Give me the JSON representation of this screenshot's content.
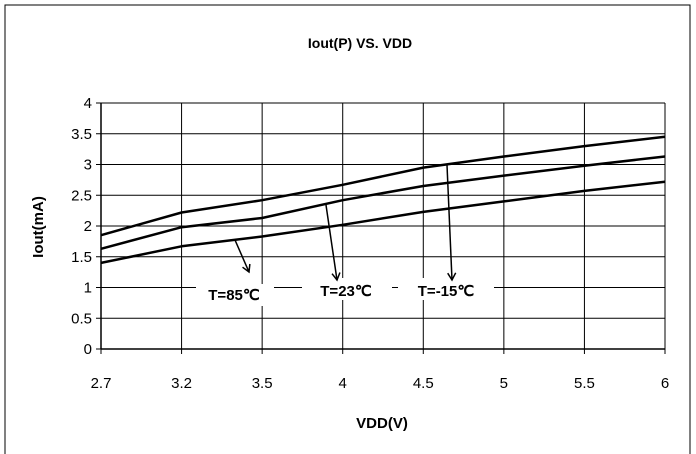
{
  "chart_data": {
    "type": "line",
    "title": "Iout(P) VS. VDD",
    "xlabel": "VDD(V)",
    "ylabel": "Iout(mA)",
    "categories": [
      "2.7",
      "3.2",
      "3.5",
      "4",
      "4.5",
      "5",
      "5.5",
      "6"
    ],
    "ylim": [
      0,
      4
    ],
    "yticks": [
      "0",
      "0.5",
      "1",
      "1.5",
      "2",
      "2.5",
      "3",
      "3.5",
      "4"
    ],
    "grid": true,
    "series": [
      {
        "name": "T=-15℃",
        "values": [
          1.85,
          2.22,
          2.42,
          2.67,
          2.95,
          3.13,
          3.3,
          3.45
        ]
      },
      {
        "name": "T=23℃",
        "values": [
          1.63,
          1.98,
          2.13,
          2.42,
          2.65,
          2.82,
          2.98,
          3.13
        ]
      },
      {
        "name": "T=85℃",
        "values": [
          1.4,
          1.67,
          1.83,
          2.02,
          2.23,
          2.4,
          2.57,
          2.72
        ]
      }
    ],
    "annotations": [
      {
        "text": "T=85℃",
        "series": 2
      },
      {
        "text": "T=23℃",
        "series": 1
      },
      {
        "text": "T=-15℃",
        "series": 0
      }
    ],
    "colors": {
      "line": "#000000",
      "grid": "#000000",
      "background": "#ffffff"
    }
  }
}
